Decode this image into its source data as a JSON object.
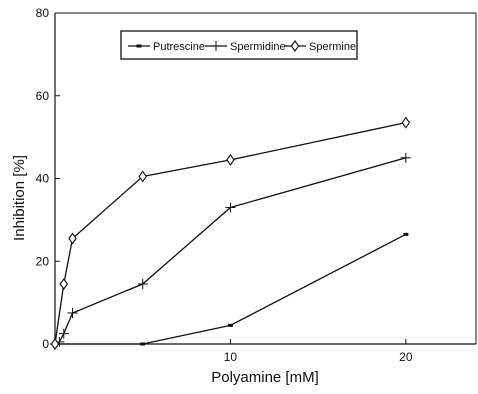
{
  "chart_data": {
    "type": "line",
    "title": "",
    "xlabel": "Polyamine [mM]",
    "ylabel": "Inhibition [%]",
    "xlim": [
      0,
      24
    ],
    "ylim": [
      0,
      80
    ],
    "x_ticks": [
      10,
      20
    ],
    "x_tick_labels": [
      "10",
      "20"
    ],
    "y_ticks": [
      0,
      20,
      40,
      60,
      80
    ],
    "y_tick_labels": [
      "0",
      "20",
      "40",
      "60",
      "80"
    ],
    "grid": false,
    "legend_position": "top-center",
    "series": [
      {
        "name": "Putrescine",
        "marker": "dash",
        "x": [
          0,
          5,
          10,
          20
        ],
        "y": [
          0,
          0,
          4.5,
          26.5
        ]
      },
      {
        "name": "Spermidine",
        "marker": "plus",
        "x": [
          0,
          0.25,
          0.5,
          1,
          5,
          10,
          20
        ],
        "y": [
          0,
          0.5,
          2.5,
          7.5,
          14.5,
          33,
          45
        ]
      },
      {
        "name": "Spermine",
        "marker": "diamond",
        "x": [
          0,
          0.5,
          1,
          5,
          10,
          20
        ],
        "y": [
          0,
          14.5,
          25.5,
          40.5,
          44.5,
          53.5
        ]
      }
    ],
    "colors": {
      "line": "#111111",
      "background": "#ffffff"
    }
  }
}
